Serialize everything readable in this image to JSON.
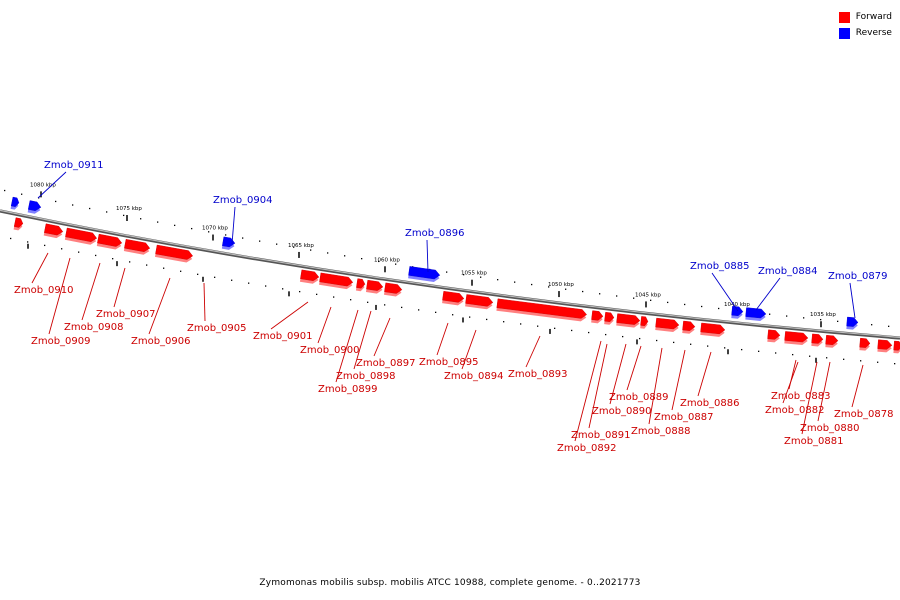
{
  "colors": {
    "forward": "#ff0000",
    "reverse": "#0000ff",
    "forward_label": "#cc0000",
    "reverse_label": "#0000cc",
    "backbone": "#888888"
  },
  "legend": {
    "forward_label": "Forward",
    "reverse_label": "Reverse"
  },
  "caption": "Zymomonas mobilis subsp. mobilis ATCC 10988, complete genome. - 0..2021773",
  "scale_labels": [
    "1080 kbp",
    "1075 kbp",
    "1070 kbp",
    "1065 kbp",
    "1060 kbp",
    "1055 kbp",
    "1050 kbp",
    "1045 kbp",
    "1040 kbp",
    "1035 kbp"
  ],
  "genes": [
    {
      "name": "Zmob_0911",
      "strand": "reverse"
    },
    {
      "name": "Zmob_0910",
      "strand": "forward"
    },
    {
      "name": "Zmob_0909",
      "strand": "forward"
    },
    {
      "name": "Zmob_0908",
      "strand": "forward"
    },
    {
      "name": "Zmob_0907",
      "strand": "forward"
    },
    {
      "name": "Zmob_0906",
      "strand": "forward"
    },
    {
      "name": "Zmob_0905",
      "strand": "forward"
    },
    {
      "name": "Zmob_0904",
      "strand": "reverse"
    },
    {
      "name": "Zmob_0901",
      "strand": "forward"
    },
    {
      "name": "Zmob_0900",
      "strand": "forward"
    },
    {
      "name": "Zmob_0899",
      "strand": "forward"
    },
    {
      "name": "Zmob_0898",
      "strand": "forward"
    },
    {
      "name": "Zmob_0897",
      "strand": "forward"
    },
    {
      "name": "Zmob_0896",
      "strand": "reverse"
    },
    {
      "name": "Zmob_0895",
      "strand": "forward"
    },
    {
      "name": "Zmob_0894",
      "strand": "forward"
    },
    {
      "name": "Zmob_0893",
      "strand": "forward"
    },
    {
      "name": "Zmob_0892",
      "strand": "forward"
    },
    {
      "name": "Zmob_0891",
      "strand": "forward"
    },
    {
      "name": "Zmob_0890",
      "strand": "forward"
    },
    {
      "name": "Zmob_0889",
      "strand": "forward"
    },
    {
      "name": "Zmob_0888",
      "strand": "forward"
    },
    {
      "name": "Zmob_0887",
      "strand": "forward"
    },
    {
      "name": "Zmob_0886",
      "strand": "forward"
    },
    {
      "name": "Zmob_0885",
      "strand": "reverse"
    },
    {
      "name": "Zmob_0884",
      "strand": "reverse"
    },
    {
      "name": "Zmob_0883",
      "strand": "forward"
    },
    {
      "name": "Zmob_0882",
      "strand": "forward"
    },
    {
      "name": "Zmob_0881",
      "strand": "forward"
    },
    {
      "name": "Zmob_0880",
      "strand": "forward"
    },
    {
      "name": "Zmob_0879",
      "strand": "reverse"
    },
    {
      "name": "Zmob_0878",
      "strand": "forward"
    }
  ]
}
